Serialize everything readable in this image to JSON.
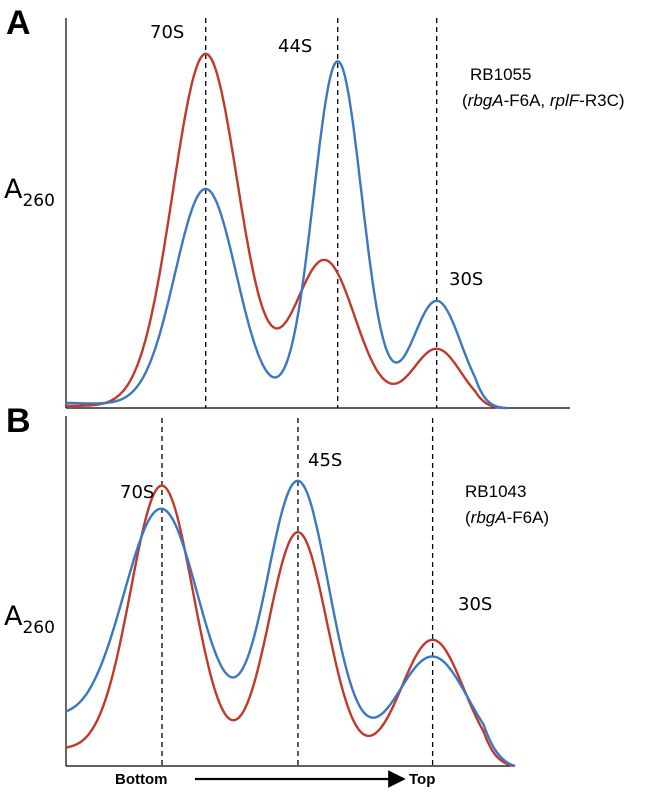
{
  "chart_data": [
    {
      "type": "line",
      "panel": "A",
      "ylabel": "A",
      "ylabel_sub": "260",
      "strain": "RB1055",
      "genotype": [
        "(",
        "rbgA",
        "-F6A, ",
        "rplF",
        "-R3C)"
      ],
      "peaks": [
        {
          "label": "70S",
          "x": 0.3175
        },
        {
          "label": "44S",
          "x": 0.6175
        },
        {
          "label": "30S",
          "x": 0.8425
        }
      ],
      "series": [
        {
          "color": "#c0392b",
          "peaks": [
            {
              "mu": 0.3175,
              "sigma": 0.075,
              "amp": 0.96
            },
            {
              "mu": 0.5875,
              "sigma": 0.07,
              "amp": 0.4
            },
            {
              "mu": 0.8425,
              "sigma": 0.055,
              "amp": 0.16
            }
          ]
        },
        {
          "color": "#3a78c2",
          "peaks": [
            {
              "mu": 0.3175,
              "sigma": 0.07,
              "amp": 0.59
            },
            {
              "mu": 0.6175,
              "sigma": 0.055,
              "amp": 0.94
            },
            {
              "mu": 0.8425,
              "sigma": 0.055,
              "amp": 0.29
            }
          ]
        }
      ],
      "xlim": [
        0,
        1
      ],
      "ylim": [
        0,
        1
      ]
    },
    {
      "type": "line",
      "panel": "B",
      "ylabel": "A",
      "ylabel_sub": "260",
      "strain": "RB1043",
      "genotype": [
        "(",
        "rbgA",
        "-F6A)"
      ],
      "peaks": [
        {
          "label": "70S",
          "x": 0.2138
        },
        {
          "label": "45S",
          "x": 0.5166
        },
        {
          "label": "30S",
          "x": 0.8165
        }
      ],
      "series": [
        {
          "color": "#c0392b",
          "peaks": [
            {
              "mu": 0.2138,
              "sigma": 0.07,
              "amp": 0.85
            },
            {
              "mu": 0.5166,
              "sigma": 0.065,
              "amp": 0.72
            },
            {
              "mu": 0.8165,
              "sigma": 0.07,
              "amp": 0.39
            }
          ]
        },
        {
          "color": "#3a78c2",
          "peaks": [
            {
              "mu": 0.2138,
              "sigma": 0.085,
              "amp": 0.73
            },
            {
              "mu": 0.5166,
              "sigma": 0.07,
              "amp": 0.86
            },
            {
              "mu": 0.8165,
              "sigma": 0.08,
              "amp": 0.33
            }
          ]
        }
      ],
      "xlim": [
        0,
        1
      ],
      "ylim": [
        0,
        1
      ]
    }
  ],
  "x_axis": {
    "left_label": "Bottom",
    "right_label": "Top"
  }
}
